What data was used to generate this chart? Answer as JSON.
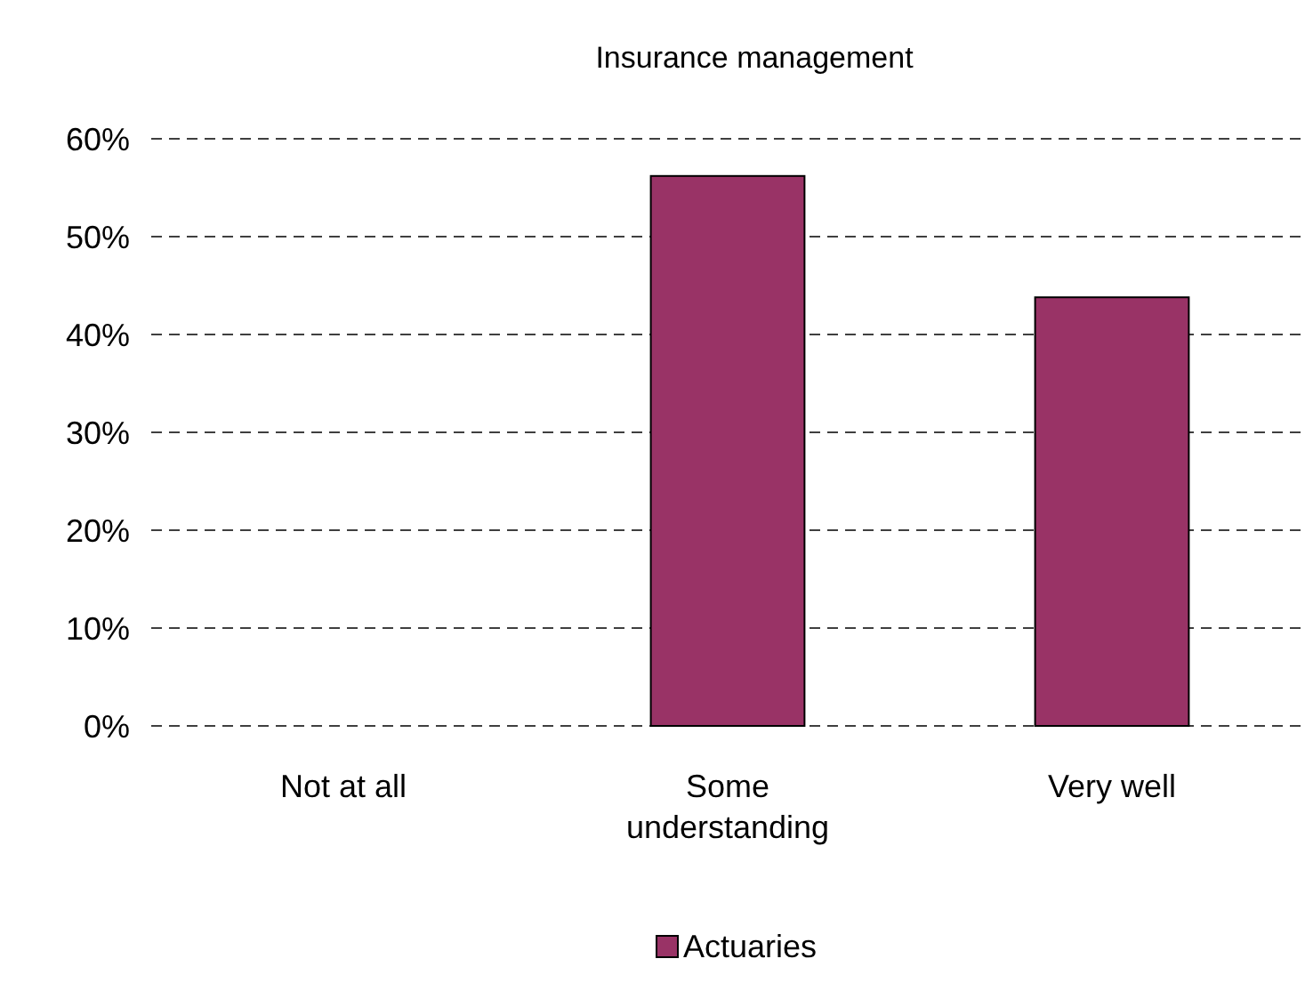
{
  "chart_data": {
    "type": "bar",
    "title": "Insurance management",
    "categories": [
      "Not at all",
      "Some understanding",
      "Very well"
    ],
    "series": [
      {
        "name": "Actuaries",
        "color": "#993366",
        "values": [
          0,
          56.2,
          43.8
        ]
      }
    ],
    "ylim": [
      0,
      60
    ],
    "yticks": [
      {
        "value": 0,
        "label": "0%"
      },
      {
        "value": 10,
        "label": "10%"
      },
      {
        "value": 20,
        "label": "20%"
      },
      {
        "value": 30,
        "label": "30%"
      },
      {
        "value": 40,
        "label": "40%"
      },
      {
        "value": 50,
        "label": "50%"
      },
      {
        "value": 60,
        "label": "60%"
      }
    ],
    "grid": "y",
    "legend": "bottom"
  }
}
